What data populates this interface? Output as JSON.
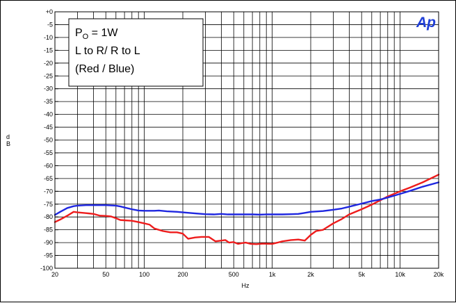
{
  "chart_data": {
    "type": "line",
    "title": "",
    "xlabel": "Hz",
    "ylabel": "d\nB",
    "xscale": "log",
    "xlim": [
      20,
      20000
    ],
    "ylim": [
      -100,
      0
    ],
    "grid": true,
    "logo": "Ap",
    "x_ticks": [
      {
        "value": 20,
        "label": "20"
      },
      {
        "value": 50,
        "label": "50"
      },
      {
        "value": 100,
        "label": "100"
      },
      {
        "value": 200,
        "label": "200"
      },
      {
        "value": 500,
        "label": "500"
      },
      {
        "value": 1000,
        "label": "1k"
      },
      {
        "value": 2000,
        "label": "2k"
      },
      {
        "value": 5000,
        "label": "5k"
      },
      {
        "value": 10000,
        "label": "10k"
      },
      {
        "value": 20000,
        "label": "20k"
      }
    ],
    "y_ticks": [
      {
        "value": 0,
        "label": "+0"
      },
      {
        "value": -5,
        "label": "-5"
      },
      {
        "value": -10,
        "label": "-10"
      },
      {
        "value": -15,
        "label": "-15"
      },
      {
        "value": -20,
        "label": "-20"
      },
      {
        "value": -25,
        "label": "-25"
      },
      {
        "value": -30,
        "label": "-30"
      },
      {
        "value": -35,
        "label": "-35"
      },
      {
        "value": -40,
        "label": "-40"
      },
      {
        "value": -45,
        "label": "-45"
      },
      {
        "value": -50,
        "label": "-50"
      },
      {
        "value": -55,
        "label": "-55"
      },
      {
        "value": -60,
        "label": "-60"
      },
      {
        "value": -65,
        "label": "-65"
      },
      {
        "value": -70,
        "label": "-70"
      },
      {
        "value": -75,
        "label": "-75"
      },
      {
        "value": -80,
        "label": "-80"
      },
      {
        "value": -85,
        "label": "-85"
      },
      {
        "value": -90,
        "label": "-90"
      },
      {
        "value": -95,
        "label": "-95"
      },
      {
        "value": -100,
        "label": "-100"
      }
    ],
    "legend": {
      "line1_main": "P",
      "line1_sub": "O",
      "line1_rest": " = 1W",
      "line2": "L to R/ R to L",
      "line3": "(Red / Blue)"
    },
    "series": [
      {
        "color": "#ee1c1c",
        "points": [
          [
            20,
            -82
          ],
          [
            22,
            -81
          ],
          [
            25,
            -79.5
          ],
          [
            28,
            -78
          ],
          [
            30,
            -78.2
          ],
          [
            35,
            -78.5
          ],
          [
            40,
            -78.8
          ],
          [
            45,
            -79.5
          ],
          [
            50,
            -79.6
          ],
          [
            55,
            -79.8
          ],
          [
            60,
            -80.5
          ],
          [
            65,
            -81.2
          ],
          [
            70,
            -81.3
          ],
          [
            80,
            -81.5
          ],
          [
            90,
            -82
          ],
          [
            100,
            -82.5
          ],
          [
            110,
            -83
          ],
          [
            120,
            -84.5
          ],
          [
            140,
            -85.5
          ],
          [
            160,
            -86
          ],
          [
            180,
            -86
          ],
          [
            200,
            -86.5
          ],
          [
            220,
            -88.5
          ],
          [
            250,
            -88
          ],
          [
            280,
            -87.8
          ],
          [
            320,
            -87.8
          ],
          [
            360,
            -89.5
          ],
          [
            400,
            -89.2
          ],
          [
            430,
            -89
          ],
          [
            460,
            -90
          ],
          [
            500,
            -89.8
          ],
          [
            540,
            -90.5
          ],
          [
            580,
            -90.2
          ],
          [
            620,
            -90
          ],
          [
            680,
            -90.5
          ],
          [
            750,
            -90.6
          ],
          [
            850,
            -90.4
          ],
          [
            1000,
            -90.5
          ],
          [
            1100,
            -90
          ],
          [
            1200,
            -89.5
          ],
          [
            1400,
            -89
          ],
          [
            1600,
            -88.8
          ],
          [
            1800,
            -89.2
          ],
          [
            2000,
            -87
          ],
          [
            2200,
            -85.5
          ],
          [
            2500,
            -85
          ],
          [
            3000,
            -82.5
          ],
          [
            3500,
            -80.8
          ],
          [
            4000,
            -79
          ],
          [
            5000,
            -77
          ],
          [
            6000,
            -75.2
          ],
          [
            7000,
            -73.5
          ],
          [
            8000,
            -72
          ],
          [
            10000,
            -70
          ],
          [
            12000,
            -68.5
          ],
          [
            15000,
            -66.5
          ],
          [
            20000,
            -63.5
          ]
        ]
      },
      {
        "color": "#1f27e0",
        "points": [
          [
            20,
            -79.2
          ],
          [
            22,
            -78
          ],
          [
            25,
            -76.5
          ],
          [
            28,
            -75.8
          ],
          [
            30,
            -75.6
          ],
          [
            35,
            -75.4
          ],
          [
            40,
            -75.4
          ],
          [
            50,
            -75.4
          ],
          [
            60,
            -75.6
          ],
          [
            65,
            -75.9
          ],
          [
            70,
            -76.3
          ],
          [
            80,
            -77
          ],
          [
            90,
            -77.5
          ],
          [
            100,
            -77.6
          ],
          [
            120,
            -77.6
          ],
          [
            130,
            -77.5
          ],
          [
            150,
            -77.8
          ],
          [
            180,
            -78
          ],
          [
            200,
            -78.2
          ],
          [
            250,
            -78.6
          ],
          [
            300,
            -78.9
          ],
          [
            350,
            -79
          ],
          [
            400,
            -78.8
          ],
          [
            450,
            -79
          ],
          [
            500,
            -79
          ],
          [
            600,
            -79
          ],
          [
            700,
            -79
          ],
          [
            800,
            -79.1
          ],
          [
            900,
            -79
          ],
          [
            1000,
            -79
          ],
          [
            1200,
            -79
          ],
          [
            1400,
            -78.9
          ],
          [
            1600,
            -78.8
          ],
          [
            1800,
            -78.4
          ],
          [
            2000,
            -78
          ],
          [
            2500,
            -77.7
          ],
          [
            3000,
            -77.2
          ],
          [
            3500,
            -76.7
          ],
          [
            4000,
            -76
          ],
          [
            5000,
            -74.8
          ],
          [
            6000,
            -73.8
          ],
          [
            7000,
            -73.2
          ],
          [
            8000,
            -72.4
          ],
          [
            10000,
            -71
          ],
          [
            12000,
            -69.8
          ],
          [
            15000,
            -68.2
          ],
          [
            20000,
            -66.5
          ]
        ]
      }
    ]
  }
}
